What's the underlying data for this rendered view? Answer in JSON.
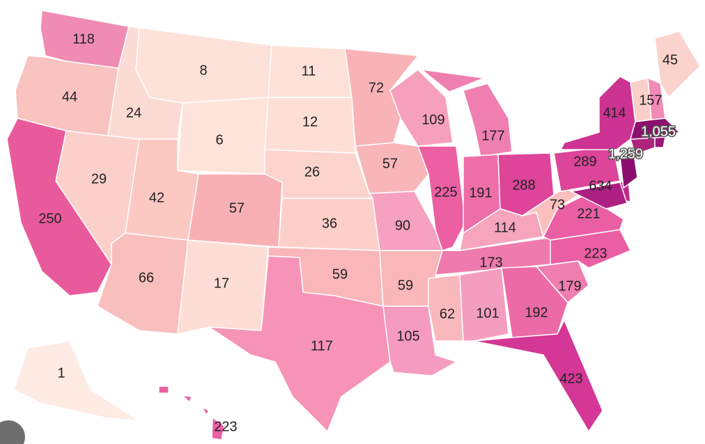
{
  "map_data": {
    "type": "choropleth",
    "regions": [
      {
        "value": 118,
        "color": "#f08cb4"
      },
      {
        "value": 44,
        "color": "#f9c3bf"
      },
      {
        "value": 250,
        "color": "#e95a9c"
      },
      {
        "value": 24,
        "color": "#fcdbd4"
      },
      {
        "value": 29,
        "color": "#fcd0ca"
      },
      {
        "value": 8,
        "color": "#fde2da"
      },
      {
        "value": 6,
        "color": "#fde3da"
      },
      {
        "value": 42,
        "color": "#fbc8c2"
      },
      {
        "value": 66,
        "color": "#f9bfbd"
      },
      {
        "value": 57,
        "color": "#f9b0b5"
      },
      {
        "value": 17,
        "color": "#fdddd6"
      },
      {
        "value": 11,
        "color": "#fde1d8"
      },
      {
        "value": 12,
        "color": "#fddfd6"
      },
      {
        "value": 26,
        "color": "#fcd4cc"
      },
      {
        "value": 36,
        "color": "#fcd0c9"
      },
      {
        "value": 59,
        "color": "#f9b7ba"
      },
      {
        "value": 117,
        "color": "#f793b7"
      },
      {
        "value": 72,
        "color": "#f9b3b7"
      },
      {
        "value": 57,
        "color": "#f9b6b9"
      },
      {
        "value": 90,
        "color": "#f6a1bf"
      },
      {
        "value": 59,
        "color": "#f9b7ba"
      },
      {
        "value": 105,
        "color": "#f59bc0"
      },
      {
        "value": 109,
        "color": "#f7a0be"
      },
      {
        "value": 225,
        "color": "#ec5fa2"
      },
      {
        "value": 177,
        "color": "#ef7fb0"
      },
      {
        "value": 191,
        "color": "#ee6ea8"
      },
      {
        "value": 288,
        "color": "#de449a"
      },
      {
        "value": 114,
        "color": "#f6a5bd"
      },
      {
        "value": 173,
        "color": "#ef7aad"
      },
      {
        "value": 62,
        "color": "#f9b8bc"
      },
      {
        "value": 101,
        "color": "#f49ebf"
      },
      {
        "value": 192,
        "color": "#ec6aa6"
      },
      {
        "value": 423,
        "color": "#d43795"
      },
      {
        "value": 179,
        "color": "#ef7dae"
      },
      {
        "value": 223,
        "color": "#ea5ea3"
      },
      {
        "value": 221,
        "color": "#ea5fa4"
      },
      {
        "value": 73,
        "color": "#fbc0bd"
      },
      {
        "value": 289,
        "color": "#dc4599"
      },
      {
        "value": 414,
        "color": "#cd3393"
      },
      {
        "value": 1259,
        "label": "1,259",
        "color": "#8c0f6e"
      },
      {
        "value": 634,
        "color": "#ad1f82"
      },
      {
        "value": 45,
        "color": "#fbd3cd"
      },
      {
        "value": 157,
        "color": "#f18ab4"
      },
      {
        "value": 1055,
        "label": "1,055",
        "color": "#8d0f6e"
      },
      {
        "value": 1,
        "color": "#fdebe4"
      },
      {
        "value": 223,
        "color": "#ea5fa3"
      }
    ]
  }
}
